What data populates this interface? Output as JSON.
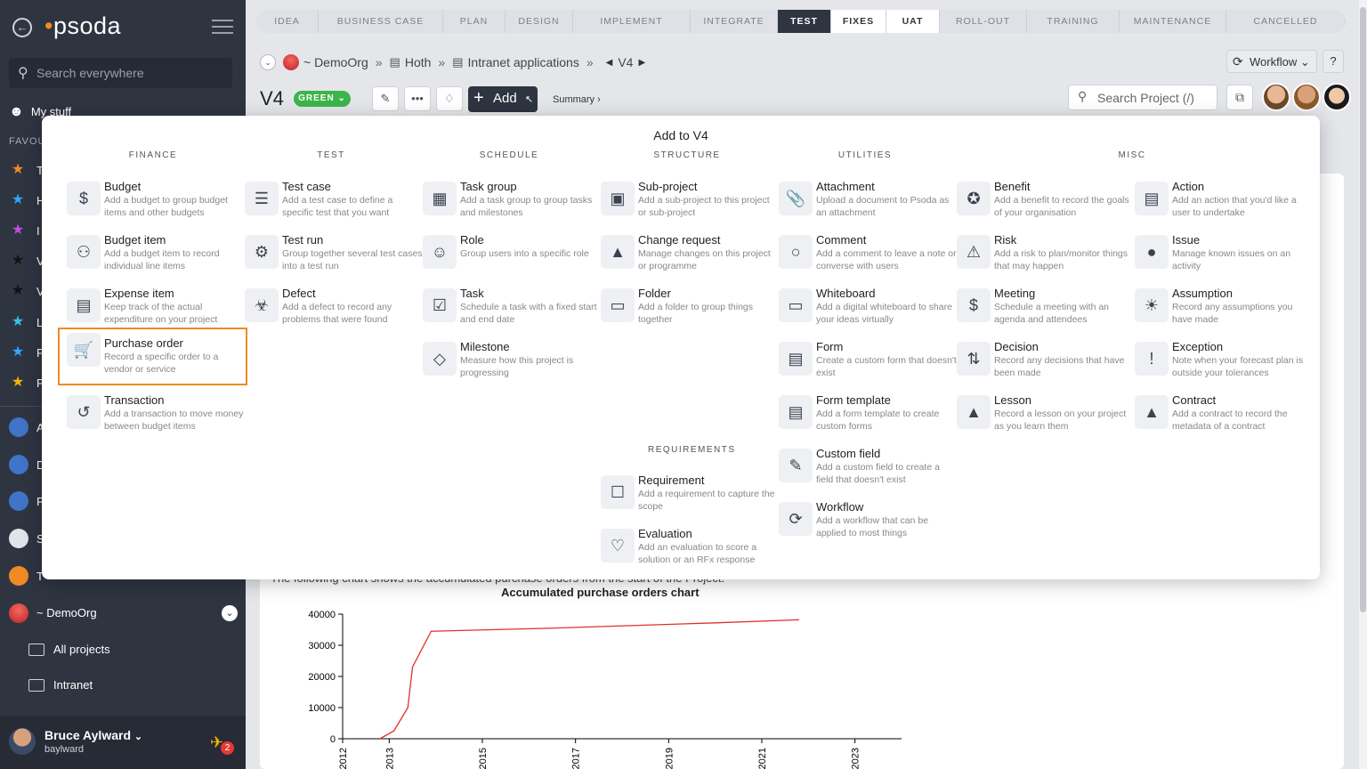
{
  "app": {
    "logo": "psoda",
    "search_placeholder": "Search everywhere",
    "my_stuff": "My stuff",
    "favourites_label": "FAVOU"
  },
  "sidebar": {
    "fav_letters": [
      "T",
      "H",
      "I",
      "V",
      "V",
      "L",
      "P",
      "P"
    ],
    "app_letters": [
      "A",
      "D",
      "P",
      "S",
      "T"
    ],
    "org": "~ DemoOrg",
    "sub_items": [
      "All projects",
      "Intranet"
    ],
    "user": {
      "name": "Bruce Aylward",
      "id": "baylward",
      "notifications": "2"
    }
  },
  "stages": [
    "IDEA",
    "BUSINESS CASE",
    "PLAN",
    "DESIGN",
    "IMPLEMENT",
    "INTEGRATE",
    "TEST",
    "FIXES",
    "UAT",
    "ROLL-OUT",
    "TRAINING",
    "MAINTENANCE",
    "CANCELLED"
  ],
  "active_stage": "TEST",
  "breadcrumb": {
    "org": "~ DemoOrg",
    "sep": "»",
    "level1": "Hoth",
    "level2": "Intranet applications",
    "current": "V4"
  },
  "header": {
    "title": "V4",
    "status": "GREEN",
    "add_label": "Add",
    "summary_label": "Summary ›",
    "workflow_label": "Workflow",
    "help_label": "?",
    "search_placeholder": "Search Project (/)"
  },
  "chart": {
    "intro": "The following chart shows the accumulated purchase orders from the start of the Project.",
    "title": "Accumulated purchase orders chart"
  },
  "chart_data": {
    "type": "line",
    "title": "Accumulated purchase orders chart",
    "x_ticks": [
      "2012",
      "2013",
      "2015",
      "2017",
      "2019",
      "2021",
      "2023"
    ],
    "y_ticks": [
      "0",
      "10000",
      "20000",
      "30000",
      "40000"
    ],
    "xlim": [
      2012,
      2024
    ],
    "ylim": [
      0,
      40000
    ],
    "series": [
      {
        "color": "#e0302d",
        "x": [
          2012.8,
          2013.1,
          2013.4,
          2013.5,
          2013.9,
          2016.5,
          2020.0,
          2021.8
        ],
        "y": [
          0,
          2500,
          10000,
          23000,
          34500,
          35500,
          37200,
          38200
        ]
      }
    ]
  },
  "popup": {
    "title": "Add to V4",
    "columns": [
      "FINANCE",
      "TEST",
      "SCHEDULE",
      "STRUCTURE",
      "UTILITIES",
      "MISC"
    ],
    "requirements_heading": "REQUIREMENTS",
    "finance": [
      {
        "name": "Budget",
        "desc": "Add a budget to group budget items and other budgets",
        "icon": "money-bag-icon"
      },
      {
        "name": "Budget item",
        "desc": "Add a budget item to record individual line items",
        "icon": "coins-icon"
      },
      {
        "name": "Expense item",
        "desc": "Keep track of the actual expenditure on your project",
        "icon": "credit-card-icon"
      },
      {
        "name": "Purchase order",
        "desc": "Record a specific order to a vendor or service",
        "icon": "shopping-cart-icon"
      },
      {
        "name": "Transaction",
        "desc": "Add a transaction to move money between budget items",
        "icon": "transaction-icon"
      }
    ],
    "test": [
      {
        "name": "Test case",
        "desc": "Add a test case to define a specific test that you want",
        "icon": "test-tubes-icon"
      },
      {
        "name": "Test run",
        "desc": "Group together several test cases into a test run",
        "icon": "test-run-icon"
      },
      {
        "name": "Defect",
        "desc": "Add a defect to record any problems that were found",
        "icon": "bug-icon"
      }
    ],
    "schedule": [
      {
        "name": "Task group",
        "desc": "Add a task group to group tasks and milestones",
        "icon": "task-group-icon"
      },
      {
        "name": "Role",
        "desc": "Group users into a specific role",
        "icon": "masks-icon"
      },
      {
        "name": "Task",
        "desc": "Schedule a task with a fixed start and end date",
        "icon": "task-icon"
      },
      {
        "name": "Milestone",
        "desc": "Measure how this project is progressing",
        "icon": "diamond-icon"
      }
    ],
    "structure": [
      {
        "name": "Sub-project",
        "desc": "Add a sub-project to this project or sub-project",
        "icon": "calendar-icon"
      },
      {
        "name": "Change request",
        "desc": "Manage changes on this project or programme",
        "icon": "bell-icon"
      },
      {
        "name": "Folder",
        "desc": "Add a folder to group things together",
        "icon": "folder-icon"
      }
    ],
    "requirements": [
      {
        "name": "Requirement",
        "desc": "Add a requirement to capture the scope",
        "icon": "checklist-icon"
      },
      {
        "name": "Evaluation",
        "desc": "Add an evaluation to score a solution or an RFx response",
        "icon": "heart-icon"
      }
    ],
    "utilities": [
      {
        "name": "Attachment",
        "desc": "Upload a document to Psoda as an attachment",
        "icon": "paperclip-icon"
      },
      {
        "name": "Comment",
        "desc": "Add a comment to leave a note or converse with users",
        "icon": "comment-icon"
      },
      {
        "name": "Whiteboard",
        "desc": "Add a digital whiteboard to share your ideas virtually",
        "icon": "whiteboard-icon"
      },
      {
        "name": "Form",
        "desc": "Create a custom form that doesn't exist",
        "icon": "form-icon"
      },
      {
        "name": "Form template",
        "desc": "Add a form template to create custom forms",
        "icon": "form-template-icon"
      },
      {
        "name": "Custom field",
        "desc": "Add a custom field to create a field that doesn't exist",
        "icon": "custom-field-icon"
      },
      {
        "name": "Workflow",
        "desc": "Add a workflow that can be applied to most things",
        "icon": "workflow-icon"
      }
    ],
    "misc_a": [
      {
        "name": "Benefit",
        "desc": "Add a benefit to record the goals of your organisation",
        "icon": "medal-icon"
      },
      {
        "name": "Risk",
        "desc": "Add a risk to plan/monitor things that may happen",
        "icon": "warning-icon"
      },
      {
        "name": "Meeting",
        "desc": "Schedule a meeting with an agenda and attendees",
        "icon": "meeting-icon"
      },
      {
        "name": "Decision",
        "desc": "Record any decisions that have been made",
        "icon": "decision-icon"
      },
      {
        "name": "Lesson",
        "desc": "Record a lesson on your project as you learn them",
        "icon": "graduation-icon"
      }
    ],
    "misc_b": [
      {
        "name": "Action",
        "desc": "Add an action that you'd like a user to undertake",
        "icon": "clapperboard-icon"
      },
      {
        "name": "Issue",
        "desc": "Manage known issues on an activity",
        "icon": "bomb-icon"
      },
      {
        "name": "Assumption",
        "desc": "Record any assumptions you have made",
        "icon": "lightbulb-icon"
      },
      {
        "name": "Exception",
        "desc": "Note when your forecast plan is outside your tolerances",
        "icon": "exclamation-icon"
      },
      {
        "name": "Contract",
        "desc": "Add a contract to record the metadata of a contract",
        "icon": "contract-icon"
      }
    ]
  }
}
